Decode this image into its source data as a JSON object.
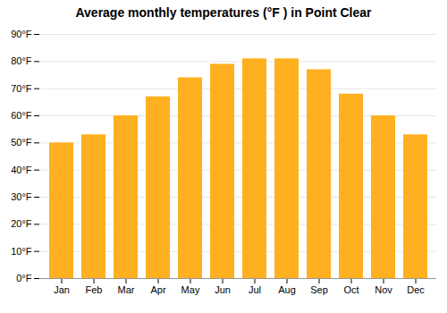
{
  "chart_data": {
    "type": "bar",
    "title": "Average monthly temperatures (°F ) in Point Clear",
    "categories": [
      "Jan",
      "Feb",
      "Mar",
      "Apr",
      "May",
      "Jun",
      "Jul",
      "Aug",
      "Sep",
      "Oct",
      "Nov",
      "Dec"
    ],
    "values": [
      50,
      53,
      60,
      67,
      74,
      79,
      81,
      81,
      77,
      68,
      60,
      53
    ],
    "color": "#FFB020",
    "ylim": [
      0,
      90
    ],
    "yticks": [
      {
        "value": 0,
        "label": "0°F"
      },
      {
        "value": 10,
        "label": "10°F"
      },
      {
        "value": 20,
        "label": "20°F"
      },
      {
        "value": 30,
        "label": "30°F"
      },
      {
        "value": 40,
        "label": "40°F"
      },
      {
        "value": 50,
        "label": "50°F"
      },
      {
        "value": 60,
        "label": "60°F"
      },
      {
        "value": 70,
        "label": "70°F"
      },
      {
        "value": 80,
        "label": "80°F"
      },
      {
        "value": 90,
        "label": "90°F"
      }
    ],
    "grid": true
  }
}
